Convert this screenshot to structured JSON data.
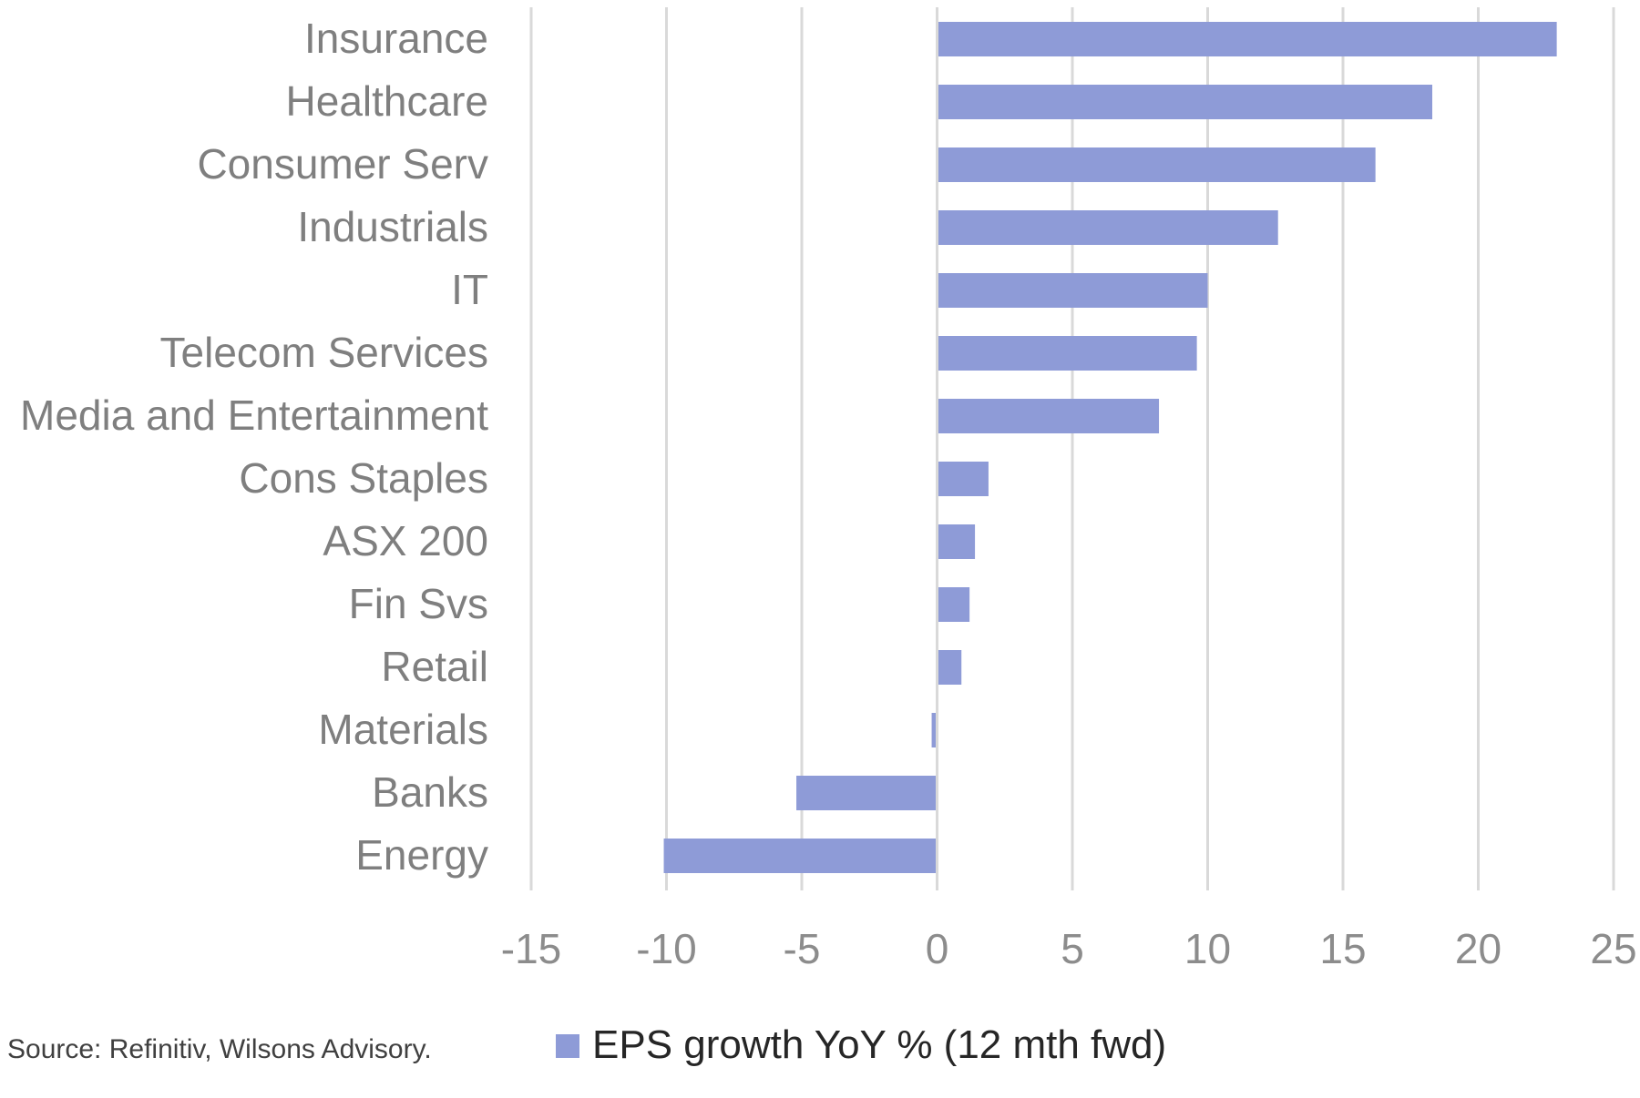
{
  "chart_data": {
    "type": "bar",
    "orientation": "horizontal",
    "title": "",
    "xlabel": "",
    "ylabel": "",
    "categories": [
      "Insurance",
      "Healthcare",
      "Consumer Serv",
      "Industrials",
      "IT",
      "Telecom Services",
      "Media and Entertainment",
      "Cons Staples",
      "ASX 200",
      "Fin Svs",
      "Retail",
      "Materials",
      "Banks",
      "Energy"
    ],
    "series": [
      {
        "name": "EPS growth YoY % (12 mth fwd)",
        "color": "#8e9bd7",
        "values": [
          22.9,
          18.3,
          16.2,
          12.6,
          10.0,
          9.6,
          8.2,
          1.9,
          1.4,
          1.2,
          0.9,
          -0.2,
          -5.2,
          -10.1
        ]
      }
    ],
    "xlim": [
      -15,
      25
    ],
    "xticks": [
      -15,
      -10,
      -5,
      0,
      5,
      10,
      15,
      20,
      25
    ],
    "xtick_labels": [
      "-15",
      "-10",
      "-5",
      "0",
      "5",
      "10",
      "15",
      "20",
      "25"
    ],
    "grid": "vertical",
    "gridline_color": "#d9d9d9",
    "legend_position": "bottom",
    "legend_label": "EPS growth YoY % (12 mth fwd)",
    "source": "Source: Refinitiv, Wilsons Advisory."
  }
}
